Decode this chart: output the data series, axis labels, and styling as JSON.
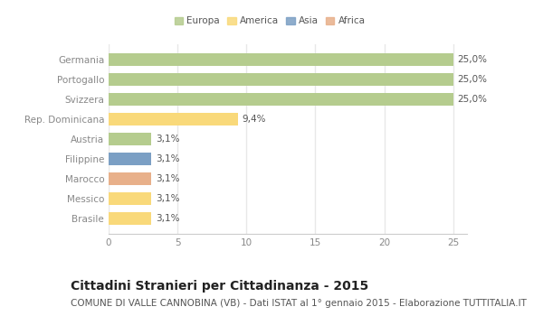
{
  "categories": [
    "Germania",
    "Portogallo",
    "Svizzera",
    "Rep. Dominicana",
    "Austria",
    "Filippine",
    "Marocco",
    "Messico",
    "Brasile"
  ],
  "values": [
    25.0,
    25.0,
    25.0,
    9.4,
    3.1,
    3.1,
    3.1,
    3.1,
    3.1
  ],
  "bar_colors": [
    "#b5cc8e",
    "#b5cc8e",
    "#b5cc8e",
    "#f9d97a",
    "#b5cc8e",
    "#7b9fc4",
    "#e8b08a",
    "#f9d97a",
    "#f9d97a"
  ],
  "labels": [
    "25,0%",
    "25,0%",
    "25,0%",
    "9,4%",
    "3,1%",
    "3,1%",
    "3,1%",
    "3,1%",
    "3,1%"
  ],
  "legend_labels": [
    "Europa",
    "America",
    "Asia",
    "Africa"
  ],
  "legend_colors": [
    "#b5cc8e",
    "#f9d97a",
    "#7b9fc4",
    "#e8b08a"
  ],
  "xlim": [
    0,
    26
  ],
  "xticks": [
    0,
    5,
    10,
    15,
    20,
    25
  ],
  "title": "Cittadini Stranieri per Cittadinanza - 2015",
  "subtitle": "COMUNE DI VALLE CANNOBINA (VB) - Dati ISTAT al 1° gennaio 2015 - Elaborazione TUTTITALIA.IT",
  "bg_color": "#ffffff",
  "plot_bg_color": "#ffffff",
  "grid_color": "#e8e8e8",
  "title_fontsize": 10,
  "subtitle_fontsize": 7.5,
  "label_fontsize": 7.5,
  "tick_fontsize": 7.5
}
